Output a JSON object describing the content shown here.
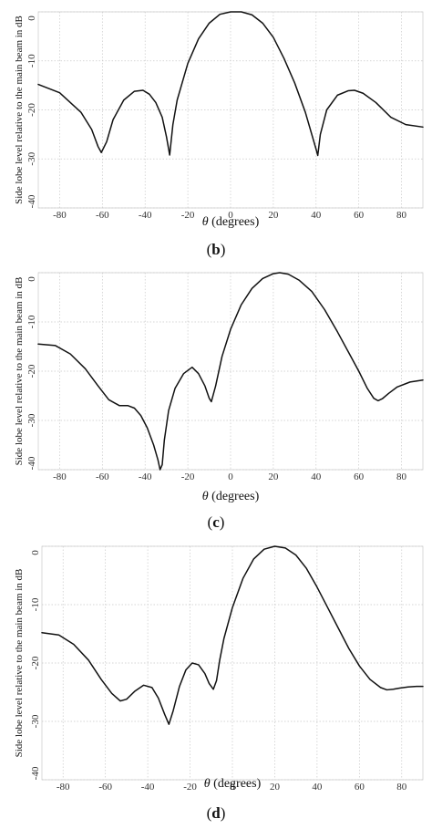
{
  "chart_data": [
    {
      "type": "line",
      "panel": "(b)",
      "panel_letter": "b",
      "xlabel_symbol": "θ",
      "xlabel_text": " (degrees)",
      "ylabel": "Side lobe level relative to the main beam in dB",
      "xlim": [
        -90,
        90
      ],
      "ylim": [
        -40,
        0
      ],
      "xticks": [
        -80,
        -60,
        -40,
        -20,
        0,
        20,
        40,
        60,
        80
      ],
      "yticks": [
        0,
        -10,
        -20,
        -30,
        -40
      ],
      "grid": true,
      "series": [
        {
          "x": [
            -90,
            -80,
            -70,
            -65,
            -62,
            -60.5,
            -58,
            -55,
            -50,
            -45,
            -41,
            -38,
            -35,
            -32,
            -30,
            -28.5,
            -27,
            -25,
            -20,
            -15,
            -10,
            -5,
            0,
            5,
            10,
            15,
            20,
            25,
            30,
            35,
            38,
            40,
            40.8,
            42,
            45,
            50,
            55,
            58,
            62,
            68,
            75,
            82,
            90
          ],
          "y": [
            -14.8,
            -16.5,
            -20.5,
            -24,
            -27.5,
            -28.7,
            -26.5,
            -22,
            -18,
            -16.2,
            -16,
            -16.8,
            -18.5,
            -21.5,
            -25.5,
            -29.2,
            -23,
            -18,
            -10.5,
            -5.5,
            -2.3,
            -0.5,
            0,
            0,
            -0.6,
            -2.3,
            -5.2,
            -9.5,
            -14.5,
            -20.5,
            -25,
            -28,
            -29.3,
            -25,
            -20,
            -17,
            -16.1,
            -16,
            -16.6,
            -18.5,
            -21.5,
            -23,
            -23.5
          ]
        }
      ]
    },
    {
      "type": "line",
      "panel": "(c)",
      "panel_letter": "c",
      "xlabel_symbol": "θ",
      "xlabel_text": " (degrees)",
      "ylabel": "Side lobe level relative to the main beam in dB",
      "xlim": [
        -90,
        90
      ],
      "ylim": [
        -40,
        0
      ],
      "xticks": [
        -80,
        -60,
        -40,
        -20,
        0,
        20,
        40,
        60,
        80
      ],
      "yticks": [
        0,
        -10,
        -20,
        -30,
        -40
      ],
      "grid": true,
      "series": [
        {
          "x": [
            -90,
            -82,
            -75,
            -68,
            -62,
            -57,
            -52,
            -48,
            -45,
            -42,
            -39,
            -36,
            -34,
            -33,
            -32,
            -31,
            -29,
            -26,
            -22,
            -18,
            -15,
            -12,
            -10,
            -9,
            -7,
            -4,
            0,
            5,
            10,
            15,
            20,
            23,
            27,
            32,
            38,
            44,
            50,
            55,
            60,
            64,
            67,
            69,
            71,
            74,
            78,
            84,
            90
          ],
          "y": [
            -14.5,
            -14.8,
            -16.5,
            -19.5,
            -23,
            -25.8,
            -27,
            -27,
            -27.5,
            -29,
            -31.5,
            -35,
            -38,
            -40,
            -39,
            -34,
            -28,
            -23.5,
            -20.5,
            -19.2,
            -20.5,
            -23,
            -25.5,
            -26.2,
            -23,
            -17,
            -11.5,
            -6.5,
            -3.2,
            -1.2,
            -0.2,
            0,
            -0.3,
            -1.5,
            -3.8,
            -7.5,
            -12,
            -16,
            -20,
            -23.5,
            -25.5,
            -26,
            -25.6,
            -24.5,
            -23.2,
            -22.2,
            -21.8
          ]
        }
      ]
    },
    {
      "type": "line",
      "panel": "(d)",
      "panel_letter": "d",
      "xlabel_symbol": "θ",
      "xlabel_text": " (degrees)",
      "ylabel": "Side lobe level relative to the main beam in dB",
      "xlim": [
        -90,
        90
      ],
      "ylim": [
        -40,
        0
      ],
      "xticks": [
        -80,
        -60,
        -40,
        -20,
        0,
        20,
        40,
        60,
        80
      ],
      "yticks": [
        0,
        -10,
        -20,
        -30,
        -40
      ],
      "grid": true,
      "series": [
        {
          "x": [
            -90,
            -82,
            -75,
            -68,
            -62,
            -57,
            -53,
            -50,
            -46,
            -42,
            -38,
            -35,
            -32,
            -30,
            -28,
            -25,
            -22,
            -19,
            -16,
            -13,
            -11,
            -9,
            -7.5,
            -6,
            -4,
            0,
            5,
            10,
            15,
            20,
            25,
            30,
            35,
            40,
            45,
            50,
            55,
            60,
            65,
            70,
            73,
            76,
            79,
            83,
            87,
            90
          ],
          "y": [
            -14.8,
            -15.2,
            -16.8,
            -19.5,
            -22.8,
            -25.2,
            -26.5,
            -26.2,
            -24.8,
            -23.8,
            -24.2,
            -26,
            -28.8,
            -30.5,
            -28.2,
            -24,
            -21.2,
            -20,
            -20.3,
            -21.8,
            -23.5,
            -24.5,
            -23,
            -19.5,
            -15.8,
            -10.5,
            -5.5,
            -2.2,
            -0.5,
            0,
            -0.3,
            -1.5,
            -3.8,
            -7,
            -10.5,
            -14,
            -17.5,
            -20.5,
            -22.8,
            -24.2,
            -24.6,
            -24.5,
            -24.3,
            -24.1,
            -24,
            -24
          ]
        }
      ]
    }
  ]
}
